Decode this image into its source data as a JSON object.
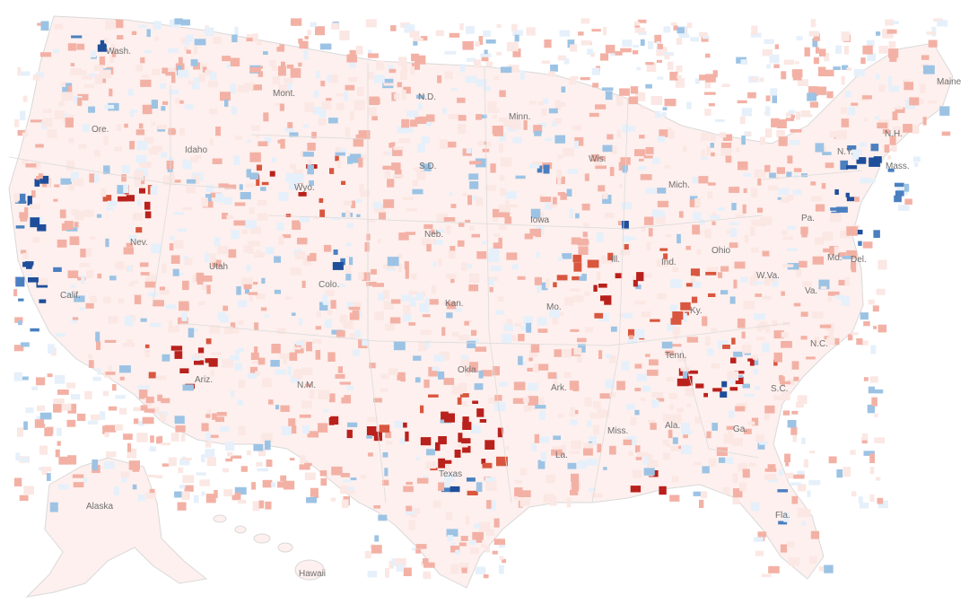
{
  "map": {
    "palette": {
      "dem_strong": "#1f4e9a",
      "dem_medium": "#4a7fc0",
      "dem_light": "#9cc3e4",
      "dem_faint": "#e6f0fa",
      "rep_faint": "#fbe7e3",
      "rep_light": "#f3b1a5",
      "rep_medium": "#d9573f",
      "rep_strong": "#b9211c",
      "neutral": "#ffffff"
    },
    "state_labels": [
      "Wash.",
      "Ore.",
      "Idaho",
      "Mont.",
      "N.D.",
      "Minn.",
      "Wis.",
      "Mich.",
      "Maine",
      "N.Y.",
      "N.H.",
      "Mass.",
      "Calif.",
      "Nev.",
      "Utah",
      "Wyo.",
      "S.D.",
      "Neb.",
      "Iowa",
      "Ill.",
      "Ind.",
      "Ohio",
      "Pa.",
      "Del.",
      "Md.",
      "W.Va.",
      "Va.",
      "Colo.",
      "Kan.",
      "Mo.",
      "Ky.",
      "Tenn.",
      "N.C.",
      "S.C.",
      "Ariz.",
      "N.M.",
      "Okla.",
      "Ark.",
      "Miss.",
      "Ala.",
      "Ga.",
      "Texas",
      "La.",
      "Fla.",
      "Alaska",
      "Hawaii"
    ]
  }
}
